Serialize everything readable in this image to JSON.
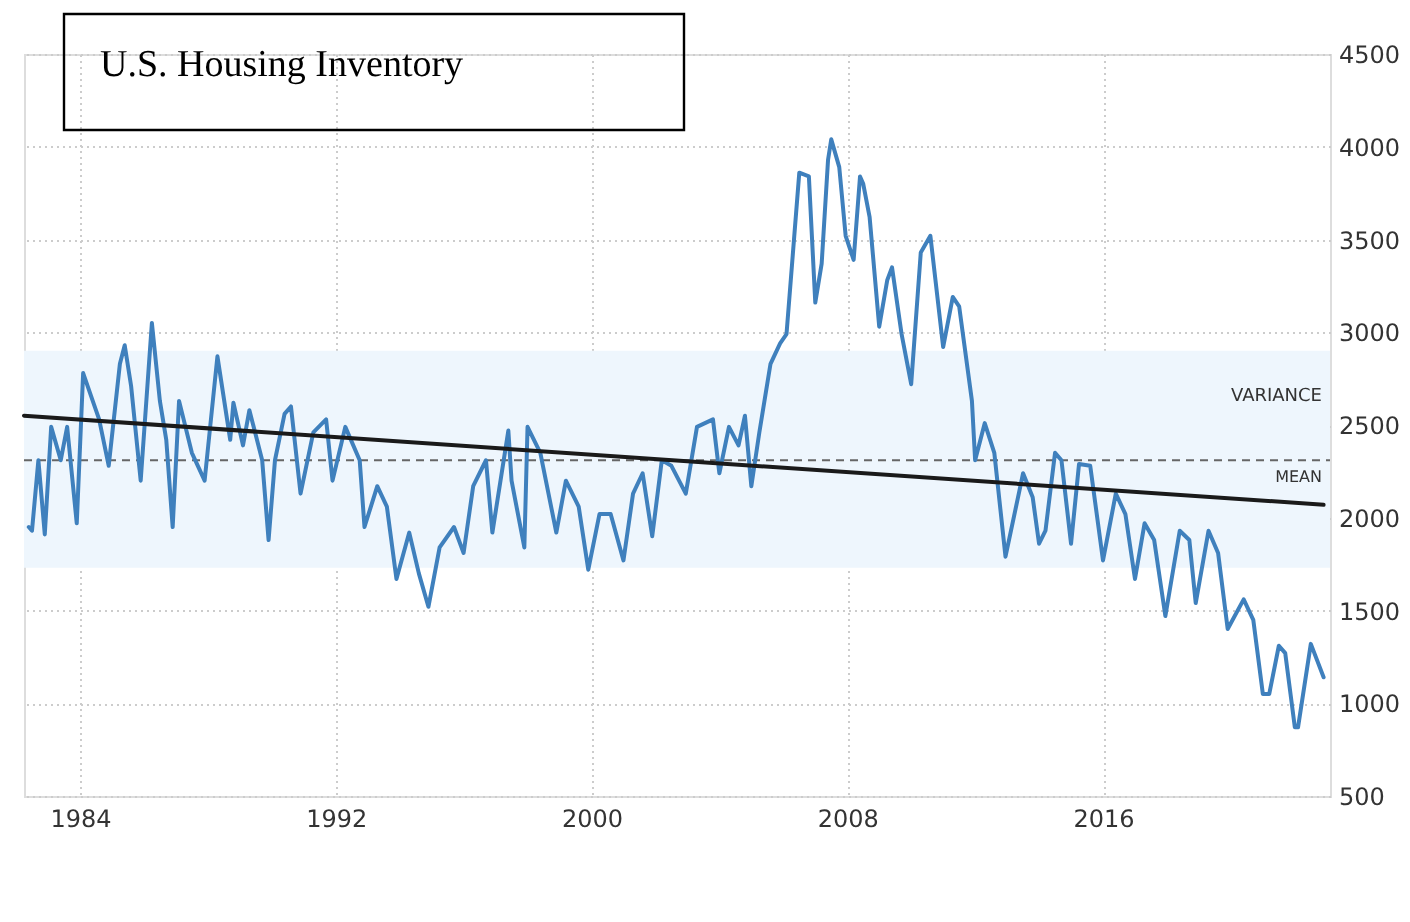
{
  "chart_data": {
    "type": "line",
    "title": "U.S. Housing Inventory",
    "xlim": [
      1982.25,
      2023.1
    ],
    "xticks": [
      1984,
      1992,
      2000,
      2008,
      2016
    ],
    "ylim": [
      500,
      4500
    ],
    "yticks": [
      500,
      1000,
      1500,
      2000,
      2500,
      3000,
      3500,
      4000,
      4500
    ],
    "grid": true,
    "series": [
      {
        "color": "#3f80bd",
        "x": [
          1982.4,
          1982.5,
          1982.7,
          1982.9,
          1983.1,
          1983.4,
          1983.6,
          1983.9,
          1984.1,
          1984.6,
          1984.9,
          1985.25,
          1985.4,
          1985.6,
          1985.9,
          1986.25,
          1986.5,
          1986.7,
          1986.9,
          1987.1,
          1987.5,
          1987.9,
          1988.3,
          1988.7,
          1988.8,
          1989.1,
          1989.3,
          1989.7,
          1989.9,
          1990.1,
          1990.4,
          1990.6,
          1990.9,
          1991.3,
          1991.7,
          1991.9,
          1992.3,
          1992.75,
          1992.9,
          1993.3,
          1993.6,
          1993.9,
          1994.3,
          1994.6,
          1994.9,
          1995.25,
          1995.7,
          1996.0,
          1996.3,
          1996.7,
          1996.9,
          1997.4,
          1997.5,
          1997.9,
          1998.0,
          1998.4,
          1998.9,
          1999.2,
          1999.6,
          1999.9,
          2000.25,
          2000.6,
          2001.0,
          2001.3,
          2001.6,
          2001.9,
          2002.2,
          2002.5,
          2002.95,
          2003.3,
          2003.8,
          2004.0,
          2004.3,
          2004.6,
          2004.8,
          2005.0,
          2005.25,
          2005.6,
          2005.9,
          2006.1,
          2006.5,
          2006.8,
          2007.0,
          2007.2,
          2007.4,
          2007.5,
          2007.75,
          2007.95,
          2008.2,
          2008.4,
          2008.5,
          2008.7,
          2009.0,
          2009.25,
          2009.4,
          2009.7,
          2010.0,
          2010.3,
          2010.6,
          2011.0,
          2011.3,
          2011.5,
          2011.9,
          2012.0,
          2012.3,
          2012.6,
          2012.95,
          2013.5,
          2013.8,
          2014.0,
          2014.2,
          2014.5,
          2014.7,
          2015.0,
          2015.25,
          2015.6,
          2016.0,
          2016.4,
          2016.7,
          2017.0,
          2017.3,
          2017.6,
          2017.95,
          2018.4,
          2018.7,
          2018.9,
          2019.3,
          2019.6,
          2019.9,
          2020.4,
          2020.7,
          2021.0,
          2021.2,
          2021.5,
          2021.7,
          2022.0,
          2022.1,
          2022.5,
          2022.9
        ],
        "values": [
          1950,
          1930,
          2310,
          1910,
          2490,
          2310,
          2490,
          1970,
          2780,
          2530,
          2280,
          2830,
          2930,
          2710,
          2200,
          3050,
          2630,
          2420,
          1950,
          2630,
          2350,
          2200,
          2870,
          2420,
          2620,
          2390,
          2580,
          2310,
          1880,
          2310,
          2560,
          2600,
          2130,
          2460,
          2530,
          2200,
          2490,
          2310,
          1950,
          2170,
          2060,
          1670,
          1920,
          1700,
          1520,
          1840,
          1950,
          1810,
          2170,
          2310,
          1920,
          2470,
          2200,
          1840,
          2490,
          2350,
          1920,
          2200,
          2060,
          1720,
          2020,
          2020,
          1770,
          2130,
          2240,
          1900,
          2310,
          2280,
          2130,
          2490,
          2530,
          2240,
          2490,
          2390,
          2550,
          2170,
          2460,
          2830,
          2940,
          2990,
          3860,
          3840,
          3160,
          3370,
          3930,
          4040,
          3890,
          3520,
          3390,
          3840,
          3800,
          3620,
          3030,
          3280,
          3350,
          2990,
          2720,
          3430,
          3520,
          2920,
          3190,
          3140,
          2630,
          2310,
          2510,
          2350,
          1790,
          2240,
          2110,
          1860,
          1930,
          2350,
          2310,
          1860,
          2290,
          2280,
          1770,
          2130,
          2020,
          1670,
          1970,
          1880,
          1470,
          1930,
          1880,
          1540,
          1930,
          1810,
          1400,
          1560,
          1450,
          1050,
          1050,
          1310,
          1270,
          870,
          870,
          1320,
          1140
        ]
      },
      {
        "type": "line",
        "color": "#1a1a1a",
        "x": [
          1982.25,
          2022.9
        ],
        "values": [
          2550,
          2070
        ]
      }
    ],
    "bands": [
      {
        "axis": "y",
        "from": 1730,
        "to": 2900,
        "label": "VARIANCE",
        "color": "#eef6fd"
      }
    ],
    "ref_lines": [
      {
        "axis": "y",
        "value": 2310,
        "label": "MEAN",
        "line_style": "dashed",
        "color": "#666666"
      }
    ]
  }
}
